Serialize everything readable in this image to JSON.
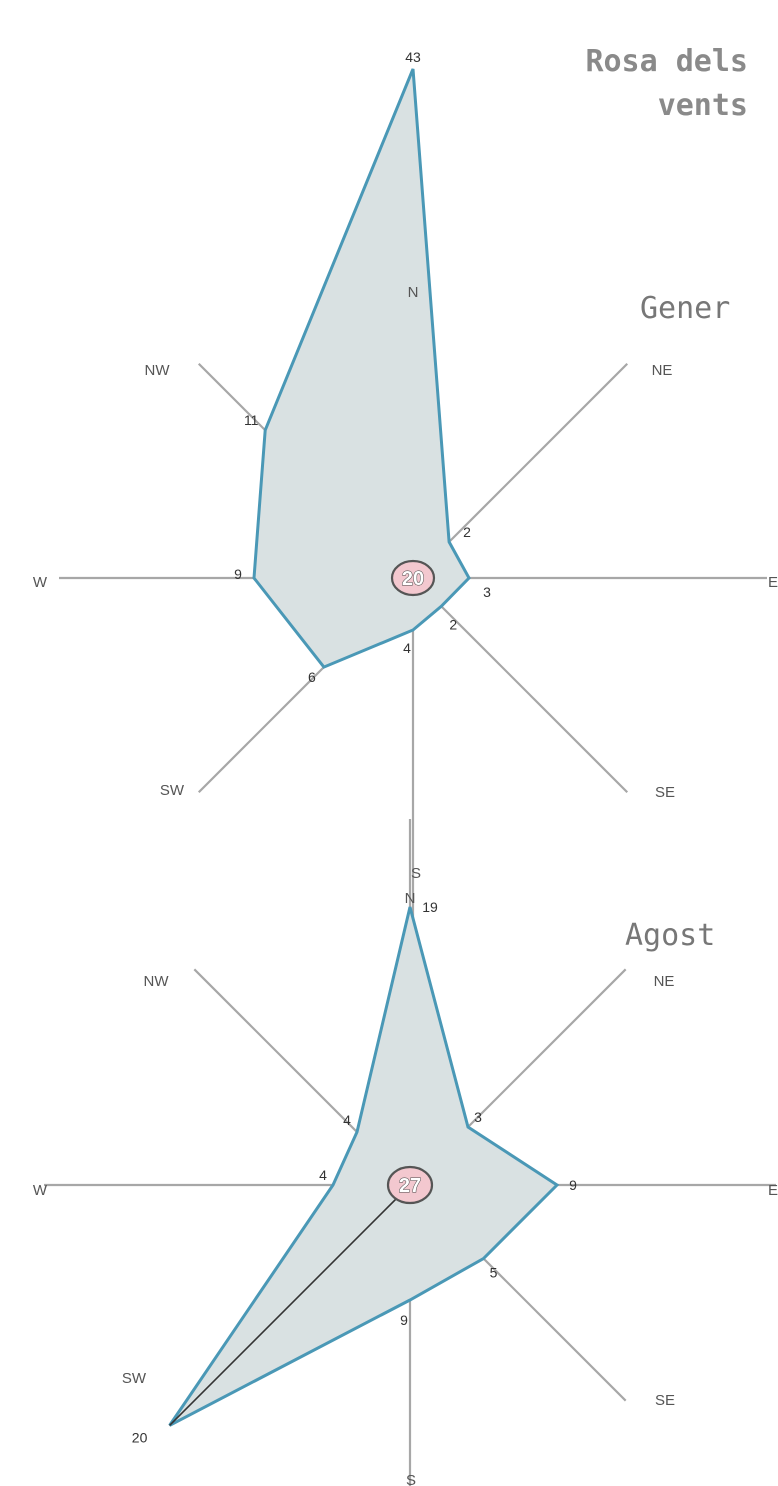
{
  "title": "Rosa dels\nvents",
  "chart_data": [
    {
      "type": "radar",
      "title": "Gener",
      "directions": [
        "N",
        "NE",
        "E",
        "SE",
        "S",
        "SW",
        "W",
        "NW"
      ],
      "values": [
        43,
        2,
        3,
        2,
        4,
        6,
        9,
        11
      ],
      "calm": 20
    },
    {
      "type": "radar",
      "title": "Agost",
      "directions": [
        "N",
        "NE",
        "E",
        "SE",
        "S",
        "SW",
        "W",
        "NW"
      ],
      "values": [
        19,
        3,
        9,
        5,
        9,
        20,
        4,
        4
      ],
      "calm": 27
    }
  ]
}
